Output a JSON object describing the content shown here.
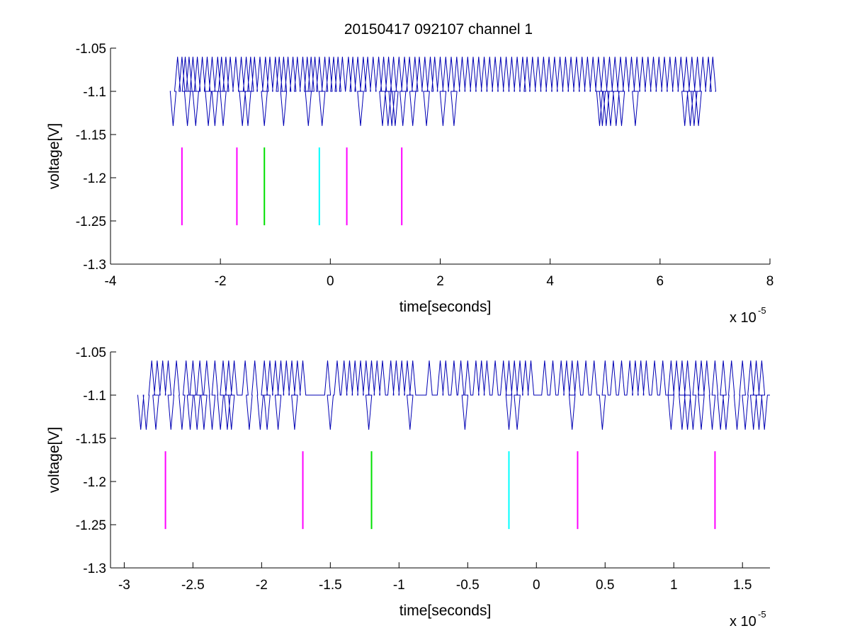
{
  "figure": {
    "title": "20150417 092107 channel 1",
    "background": "#ffffff"
  },
  "colors": {
    "signal": "#0000b4",
    "magenta": "#ff00ff",
    "green": "#00e000",
    "cyan": "#00ffff"
  },
  "chart_data": [
    {
      "type": "line",
      "title": "20150417 092107 channel 1",
      "xlabel": "time[seconds]",
      "ylabel": "voltage[V]",
      "x_exponent_base": "x 10",
      "x_exponent_power": "-5",
      "xlim": [
        -4,
        8
      ],
      "ylim": [
        -1.3,
        -1.05
      ],
      "xticks": [
        -4,
        -2,
        0,
        2,
        4,
        6,
        8
      ],
      "xtick_labels": [
        "-4",
        "-2",
        "0",
        "2",
        "4",
        "6",
        "8"
      ],
      "yticks": [
        -1.05,
        -1.1,
        -1.15,
        -1.2,
        -1.25,
        -1.3
      ],
      "ytick_labels": [
        "-1.05",
        "-1.1",
        "-1.15",
        "-1.2",
        "-1.25",
        "-1.3"
      ],
      "grid": false,
      "signal": {
        "x_range": [
          -2.9,
          7.0
        ],
        "baseline": -1.1,
        "high_level": -1.06,
        "low_level": -1.14,
        "high_pulses": [
          -2.78,
          -2.7,
          -2.64,
          -2.57,
          -2.5,
          -2.42,
          -2.33,
          -2.24,
          -2.15,
          -2.05,
          -1.98,
          -1.9,
          -1.82,
          -1.72,
          -1.62,
          -1.53,
          -1.45,
          -1.38,
          -1.28,
          -1.18,
          -1.1,
          -1.0,
          -0.93,
          -0.85,
          -0.77,
          -0.68,
          -0.6,
          -0.5,
          -0.42,
          -0.35,
          -0.28,
          -0.2,
          -0.1,
          -0.02,
          0.06,
          0.14,
          0.22,
          0.33,
          0.41,
          0.5,
          0.6,
          0.68,
          0.78,
          0.88,
          0.97,
          1.06,
          1.15,
          1.25,
          1.35,
          1.44,
          1.54,
          1.62,
          1.72,
          1.82,
          1.9,
          2.0,
          2.1,
          2.2,
          2.3,
          2.4,
          2.5,
          2.6,
          2.7,
          2.8,
          2.9,
          3.0,
          3.1,
          3.2,
          3.3,
          3.4,
          3.5,
          3.58,
          3.68,
          3.78,
          3.88,
          3.98,
          4.08,
          4.18,
          4.28,
          4.38,
          4.48,
          4.58,
          4.68,
          4.78,
          4.88,
          4.98,
          5.08,
          5.18,
          5.28,
          5.38,
          5.48,
          5.58,
          5.68,
          5.78,
          5.88,
          5.98,
          6.08,
          6.18,
          6.28,
          6.38,
          6.48,
          6.58,
          6.68,
          6.78,
          6.88,
          6.96
        ],
        "low_pulses": [
          -2.86,
          -2.6,
          -2.45,
          -2.22,
          -2.1,
          -1.95,
          -1.6,
          -1.5,
          -1.2,
          -0.85,
          -0.4,
          -0.15,
          0.55,
          0.95,
          1.05,
          1.12,
          1.18,
          1.32,
          1.5,
          1.75,
          2.05,
          2.25,
          4.9,
          4.95,
          5.02,
          5.1,
          5.2,
          5.3,
          5.55,
          6.45,
          6.55,
          6.62,
          6.7
        ]
      },
      "markers": [
        {
          "x": -2.7,
          "color": "magenta",
          "y_top": -1.165,
          "y_bottom": -1.255
        },
        {
          "x": -1.7,
          "color": "magenta",
          "y_top": -1.165,
          "y_bottom": -1.255
        },
        {
          "x": -1.2,
          "color": "green",
          "y_top": -1.165,
          "y_bottom": -1.255
        },
        {
          "x": -0.2,
          "color": "cyan",
          "y_top": -1.165,
          "y_bottom": -1.255
        },
        {
          "x": 0.3,
          "color": "magenta",
          "y_top": -1.165,
          "y_bottom": -1.255
        },
        {
          "x": 1.3,
          "color": "magenta",
          "y_top": -1.165,
          "y_bottom": -1.255
        }
      ]
    },
    {
      "type": "line",
      "title": "",
      "xlabel": "time[seconds]",
      "ylabel": "voltage[V]",
      "x_exponent_base": "x 10",
      "x_exponent_power": "-5",
      "xlim": [
        -3.1,
        1.7
      ],
      "ylim": [
        -1.3,
        -1.05
      ],
      "xticks": [
        -3,
        -2.5,
        -2,
        -1.5,
        -1,
        -0.5,
        0,
        0.5,
        1,
        1.5
      ],
      "xtick_labels": [
        "-3",
        "-2.5",
        "-2",
        "-1.5",
        "-1",
        "-0.5",
        "0",
        "0.5",
        "1",
        "1.5"
      ],
      "yticks": [
        -1.05,
        -1.1,
        -1.15,
        -1.2,
        -1.25,
        -1.3
      ],
      "ytick_labels": [
        "-1.05",
        "-1.1",
        "-1.15",
        "-1.2",
        "-1.25",
        "-1.3"
      ],
      "grid": false,
      "signal": {
        "x_range": [
          -2.9,
          1.7
        ],
        "baseline": -1.1,
        "high_level": -1.06,
        "low_level": -1.14,
        "high_pulses": [
          -2.8,
          -2.76,
          -2.72,
          -2.68,
          -2.62,
          -2.55,
          -2.5,
          -2.45,
          -2.4,
          -2.34,
          -2.28,
          -2.24,
          -2.2,
          -2.12,
          -2.05,
          -1.98,
          -1.94,
          -1.9,
          -1.86,
          -1.82,
          -1.78,
          -1.74,
          -1.7,
          -1.52,
          -1.45,
          -1.4,
          -1.36,
          -1.32,
          -1.28,
          -1.24,
          -1.2,
          -1.16,
          -1.12,
          -1.06,
          -1.02,
          -0.98,
          -0.94,
          -0.9,
          -0.78,
          -0.7,
          -0.66,
          -0.6,
          -0.55,
          -0.5,
          -0.44,
          -0.4,
          -0.36,
          -0.3,
          -0.24,
          -0.2,
          -0.16,
          -0.12,
          -0.08,
          -0.04,
          0.06,
          0.12,
          0.18,
          0.22,
          0.26,
          0.3,
          0.36,
          0.42,
          0.5,
          0.56,
          0.62,
          0.68,
          0.72,
          0.76,
          0.8,
          0.86,
          0.92,
          0.98,
          1.02,
          1.06,
          1.1,
          1.16,
          1.2,
          1.24,
          1.3,
          1.36,
          1.42,
          1.5,
          1.56,
          1.6,
          1.64
        ],
        "low_pulses": [
          -2.88,
          -2.84,
          -2.77,
          -2.66,
          -2.58,
          -2.52,
          -2.47,
          -2.42,
          -2.36,
          -2.3,
          -2.25,
          -2.22,
          -2.09,
          -2.01,
          -1.96,
          -1.88,
          -1.76,
          -1.5,
          -1.22,
          -0.92,
          -0.52,
          -0.2,
          -0.14,
          0.26,
          0.48,
          0.98,
          1.06,
          1.1,
          1.14,
          1.2,
          1.28,
          1.34,
          1.38,
          1.46,
          1.52,
          1.58,
          1.62,
          1.66
        ]
      },
      "markers": [
        {
          "x": -2.7,
          "color": "magenta",
          "y_top": -1.165,
          "y_bottom": -1.255
        },
        {
          "x": -1.7,
          "color": "magenta",
          "y_top": -1.165,
          "y_bottom": -1.255
        },
        {
          "x": -1.2,
          "color": "green",
          "y_top": -1.165,
          "y_bottom": -1.255
        },
        {
          "x": -0.2,
          "color": "cyan",
          "y_top": -1.165,
          "y_bottom": -1.255
        },
        {
          "x": 0.3,
          "color": "magenta",
          "y_top": -1.165,
          "y_bottom": -1.255
        },
        {
          "x": 1.3,
          "color": "magenta",
          "y_top": -1.165,
          "y_bottom": -1.255
        }
      ]
    }
  ]
}
